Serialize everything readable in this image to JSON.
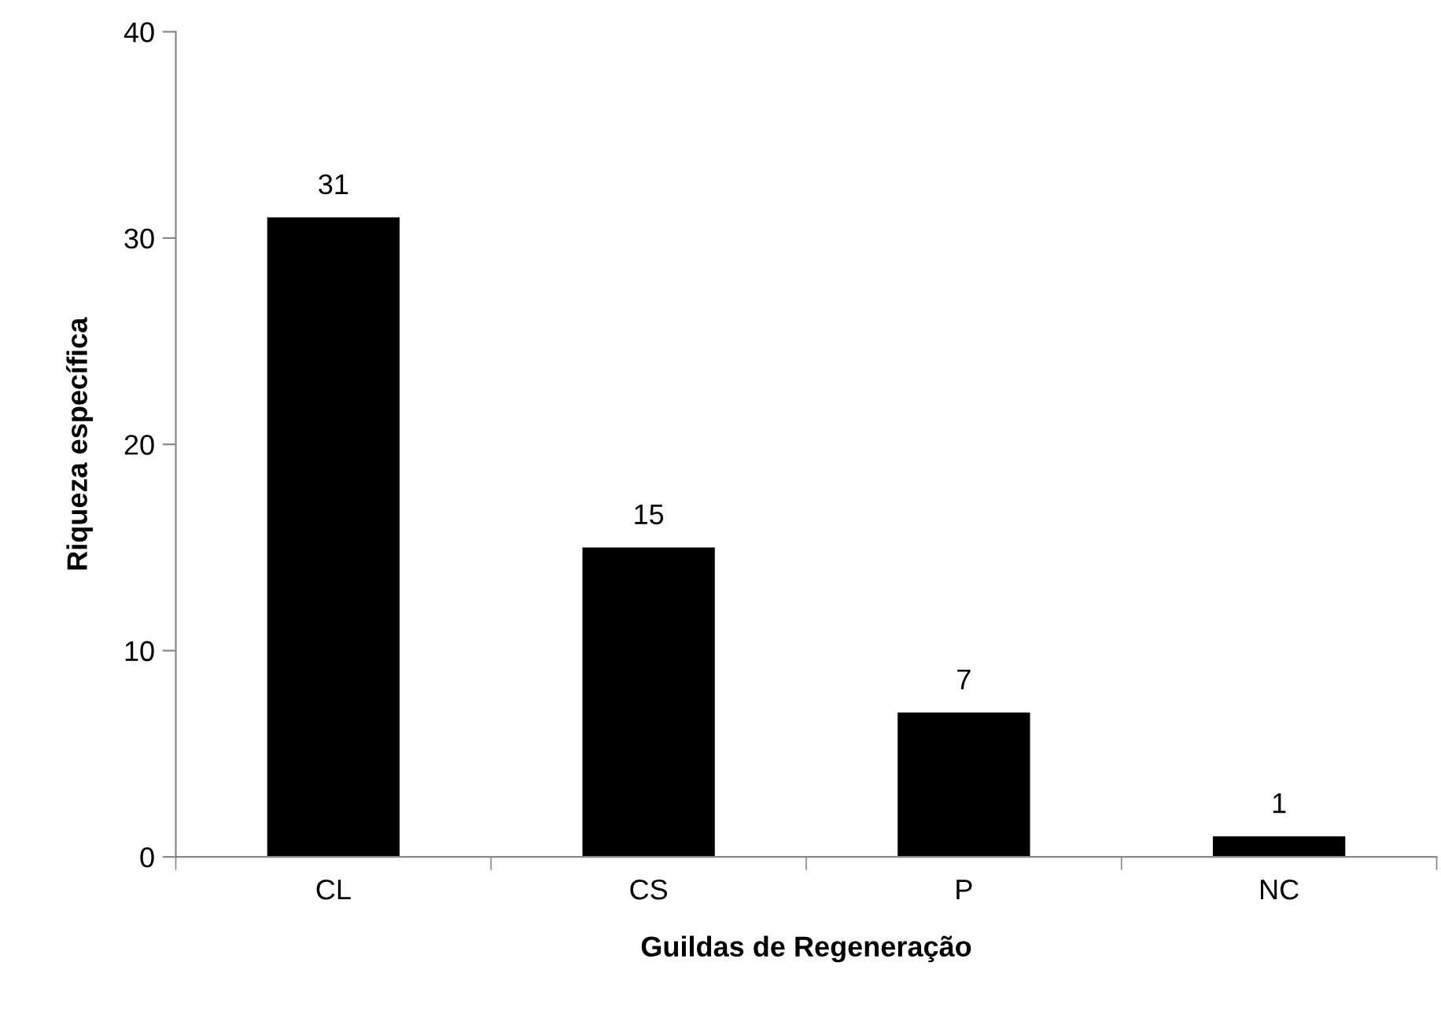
{
  "chart_data": {
    "type": "bar",
    "xlabel": "Guildas de Regeneração",
    "ylabel": "Riqueza específica",
    "categories": [
      "CL",
      "CS",
      "P",
      "NC"
    ],
    "values": [
      31,
      15,
      7,
      1
    ],
    "color": "#000000",
    "ylim": [
      0,
      40
    ],
    "yticks": [
      0,
      10,
      20,
      30,
      40
    ],
    "grid": false,
    "data_labels": true,
    "legend": false
  }
}
